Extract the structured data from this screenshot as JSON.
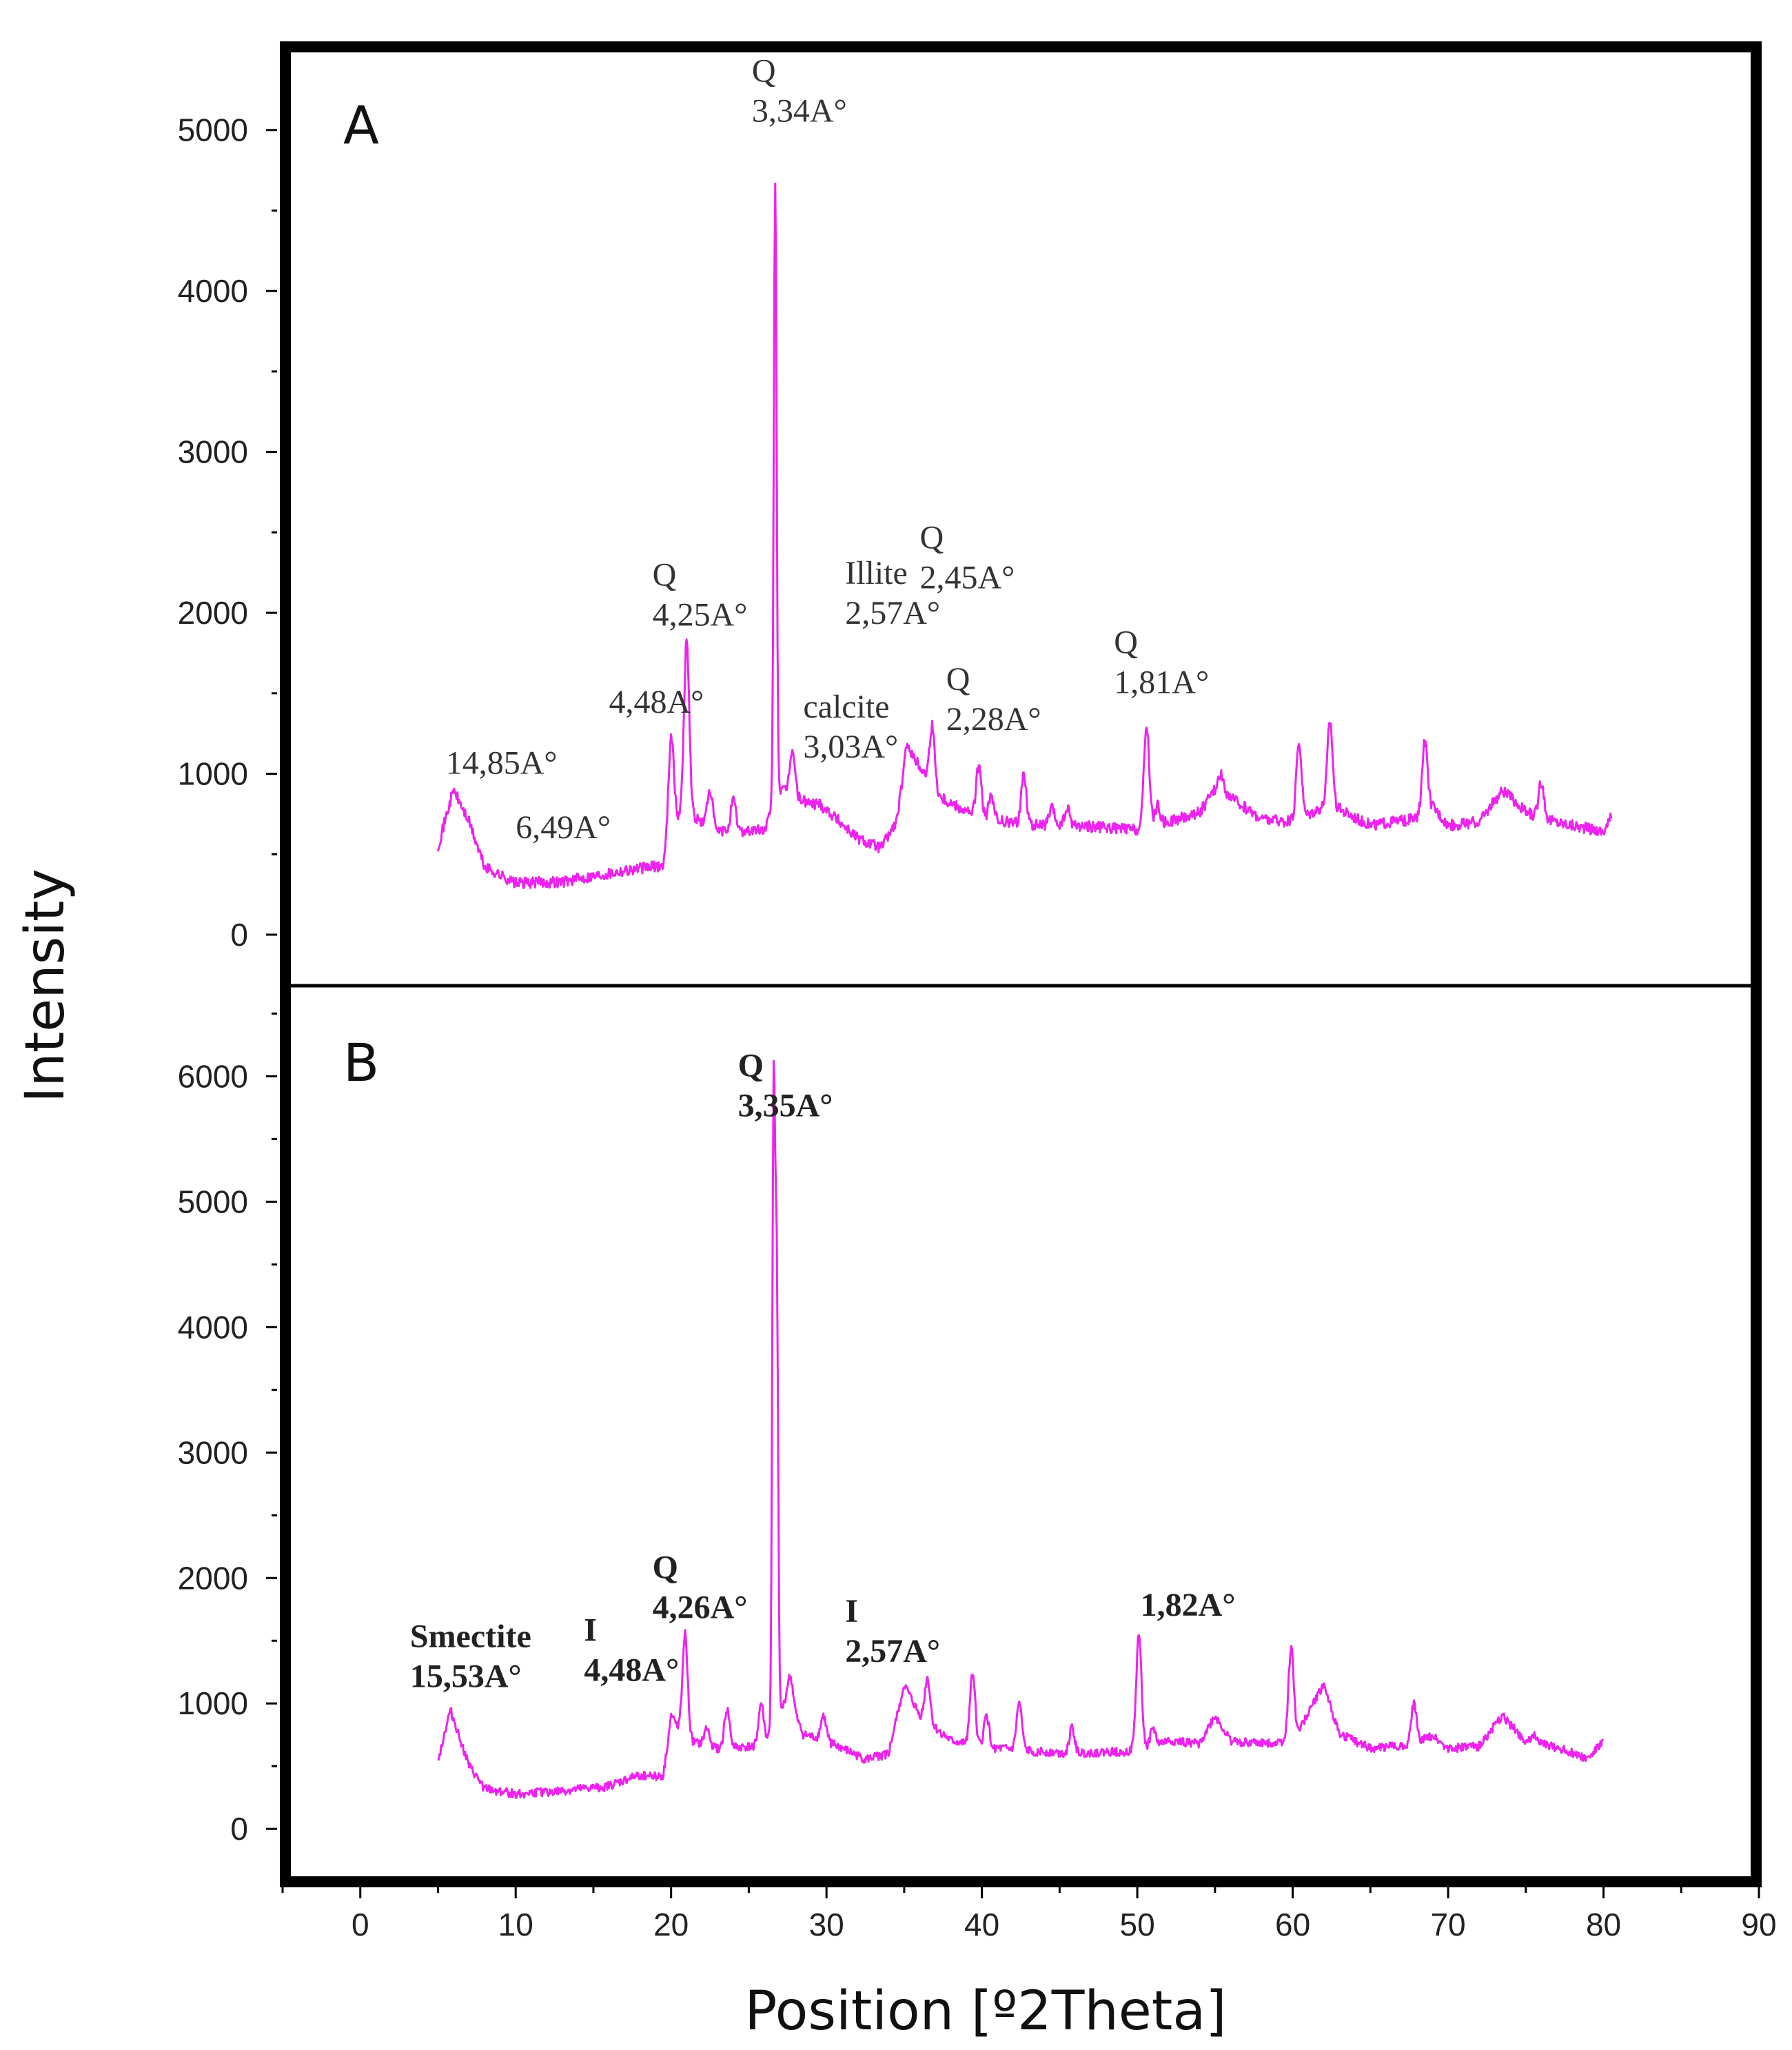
{
  "chart_data": {
    "type": "line",
    "xlabel": "Position [º2Theta]",
    "ylabel": "Intensity",
    "xlim": [
      -5,
      90
    ],
    "x_ticks": [
      "0",
      "10",
      "20",
      "30",
      "40",
      "50",
      "60",
      "70",
      "80",
      "90"
    ],
    "line_color": "#ee22ee",
    "panels": [
      {
        "label": "A",
        "ylim": [
          -300,
          5500
        ],
        "y_ticks": [
          "0",
          "1000",
          "2000",
          "3000",
          "4000",
          "5000"
        ],
        "baseline": [
          [
            5,
            550
          ],
          [
            6,
            900
          ],
          [
            7,
            700
          ],
          [
            8,
            420
          ],
          [
            10,
            320
          ],
          [
            13,
            330
          ],
          [
            17,
            400
          ],
          [
            19.5,
            430
          ],
          [
            20,
            700
          ],
          [
            21,
            750
          ],
          [
            23,
            640
          ],
          [
            26,
            650
          ],
          [
            27,
            900
          ],
          [
            28,
            850
          ],
          [
            30,
            780
          ],
          [
            32,
            600
          ],
          [
            33.5,
            540
          ],
          [
            34.5,
            700
          ],
          [
            35.2,
            1150
          ],
          [
            36,
            1050
          ],
          [
            37,
            880
          ],
          [
            38,
            820
          ],
          [
            40,
            720
          ],
          [
            43,
            680
          ],
          [
            46,
            680
          ],
          [
            50,
            650
          ],
          [
            52,
            700
          ],
          [
            54,
            760
          ],
          [
            55,
            900
          ],
          [
            56,
            850
          ],
          [
            58,
            720
          ],
          [
            60,
            700
          ],
          [
            62,
            800
          ],
          [
            63,
            780
          ],
          [
            65,
            680
          ],
          [
            68,
            720
          ],
          [
            69,
            800
          ],
          [
            70,
            680
          ],
          [
            72,
            700
          ],
          [
            73.5,
            900
          ],
          [
            75,
            760
          ],
          [
            77,
            700
          ],
          [
            80,
            640
          ],
          [
            80.5,
            730
          ]
        ],
        "peaks": [
          [
            20,
            1250
          ],
          [
            21,
            1830
          ],
          [
            22.5,
            900
          ],
          [
            24,
            830
          ],
          [
            26.7,
            4700
          ],
          [
            27.8,
            1150
          ],
          [
            29.5,
            820
          ],
          [
            35.2,
            1200
          ],
          [
            36.8,
            1300
          ],
          [
            39.8,
            1050
          ],
          [
            40.6,
            850
          ],
          [
            42.7,
            1000
          ],
          [
            44.5,
            780
          ],
          [
            45.5,
            780
          ],
          [
            50.6,
            1300
          ],
          [
            51.3,
            800
          ],
          [
            55.4,
            1000
          ],
          [
            60.4,
            1200
          ],
          [
            62.4,
            1330
          ],
          [
            68.5,
            1200
          ],
          [
            76,
            950
          ]
        ],
        "annotations": [
          {
            "lines": [
              "14,85A°"
            ],
            "x": 5.5,
            "y": 1000
          },
          {
            "lines": [
              "6,49A°"
            ],
            "x": 10,
            "y": 600
          },
          {
            "lines": [
              "4,48A°"
            ],
            "x": 16,
            "y": 1380
          },
          {
            "lines": [
              "Q",
              "4,25A°"
            ],
            "x": 18.8,
            "y": 2170
          },
          {
            "lines": [
              "Q",
              "3,34A°"
            ],
            "x": 25.2,
            "y": 5300
          },
          {
            "lines": [
              "calcite",
              "3,03A°"
            ],
            "x": 28.5,
            "y": 1350
          },
          {
            "lines": [
              "Illite",
              "2,57A°"
            ],
            "x": 31.2,
            "y": 2180
          },
          {
            "lines": [
              "Q",
              "2,45A°"
            ],
            "x": 36,
            "y": 2400
          },
          {
            "lines": [
              "Q",
              "2,28A°"
            ],
            "x": 37.7,
            "y": 1520
          },
          {
            "lines": [
              "Q",
              "1,81A°"
            ],
            "x": 48.5,
            "y": 1750
          }
        ]
      },
      {
        "label": "B",
        "ylim": [
          -400,
          6700
        ],
        "y_ticks": [
          "0",
          "1000",
          "2000",
          "3000",
          "4000",
          "5000",
          "6000"
        ],
        "baseline": [
          [
            5,
            550
          ],
          [
            5.8,
            950
          ],
          [
            7,
            500
          ],
          [
            8,
            320
          ],
          [
            10,
            280
          ],
          [
            13,
            300
          ],
          [
            16,
            340
          ],
          [
            18,
            430
          ],
          [
            19.5,
            420
          ],
          [
            20,
            900
          ],
          [
            21,
            700
          ],
          [
            23,
            640
          ],
          [
            26,
            660
          ],
          [
            27.5,
            1050
          ],
          [
            28.5,
            750
          ],
          [
            30,
            700
          ],
          [
            32.5,
            550
          ],
          [
            34,
            600
          ],
          [
            35,
            1150
          ],
          [
            36,
            900
          ],
          [
            38,
            700
          ],
          [
            40,
            650
          ],
          [
            43,
            620
          ],
          [
            46,
            600
          ],
          [
            50,
            620
          ],
          [
            52,
            700
          ],
          [
            54,
            680
          ],
          [
            55,
            900
          ],
          [
            56,
            700
          ],
          [
            58,
            680
          ],
          [
            60,
            700
          ],
          [
            62,
            1150
          ],
          [
            63,
            760
          ],
          [
            65,
            640
          ],
          [
            68,
            680
          ],
          [
            69,
            750
          ],
          [
            70,
            640
          ],
          [
            72,
            660
          ],
          [
            73.5,
            900
          ],
          [
            75,
            700
          ],
          [
            77,
            650
          ],
          [
            79,
            560
          ],
          [
            80,
            700
          ]
        ],
        "peaks": [
          [
            20.9,
            1550
          ],
          [
            22.3,
            800
          ],
          [
            23.6,
            950
          ],
          [
            25.8,
            1000
          ],
          [
            26.6,
            5800
          ],
          [
            26.8,
            4300
          ],
          [
            27.7,
            1200
          ],
          [
            29.8,
            900
          ],
          [
            36.5,
            1200
          ],
          [
            39.4,
            1250
          ],
          [
            40.3,
            900
          ],
          [
            42.4,
            1000
          ],
          [
            45.8,
            800
          ],
          [
            50.1,
            1550
          ],
          [
            51,
            800
          ],
          [
            59.9,
            1450
          ],
          [
            67.8,
            1000
          ],
          [
            75.6,
            750
          ]
        ],
        "annotations": [
          {
            "lines": [
              "Smectite",
              "15,53A°"
            ],
            "x": 3.2,
            "y": 1450
          },
          {
            "lines": [
              "I",
              "4,48A°"
            ],
            "x": 14.4,
            "y": 1500
          },
          {
            "lines": [
              "Q",
              "4,26A°"
            ],
            "x": 18.8,
            "y": 2000
          },
          {
            "lines": [
              "Q",
              "3,35A°"
            ],
            "x": 24.3,
            "y": 6000
          },
          {
            "lines": [
              "I",
              "2,57A°"
            ],
            "x": 31.2,
            "y": 1650
          },
          {
            "lines": [
              "1,82A°"
            ],
            "x": 50.2,
            "y": 1700
          }
        ]
      }
    ]
  }
}
